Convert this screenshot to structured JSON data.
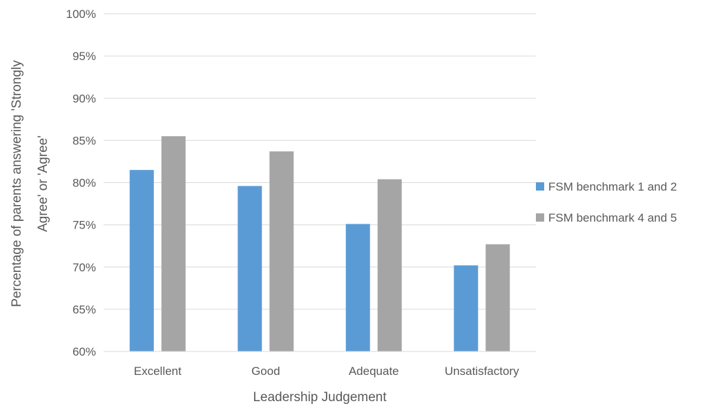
{
  "chart_data": {
    "type": "bar",
    "title": "",
    "xlabel": "Leadership Judgement",
    "ylabel_lines": [
      "Percentage of parents answering 'Strongly",
      "Agree' or 'Agree'"
    ],
    "categories": [
      "Excellent",
      "Good",
      "Adequate",
      "Unsatisfactory"
    ],
    "series": [
      {
        "name": "FSM benchmark 1 and 2",
        "color": "#5b9bd5",
        "values": [
          0.815,
          0.796,
          0.751,
          0.702
        ]
      },
      {
        "name": "FSM benchmark 4 and 5",
        "color": "#a5a5a5",
        "values": [
          0.855,
          0.837,
          0.804,
          0.727
        ]
      }
    ],
    "ylim": [
      0.6,
      1.0
    ],
    "yticks": [
      0.6,
      0.65,
      0.7,
      0.75,
      0.8,
      0.85,
      0.9,
      0.95,
      1.0
    ],
    "ytick_labels": [
      "60%",
      "65%",
      "70%",
      "75%",
      "80%",
      "85%",
      "90%",
      "95%",
      "100%"
    ],
    "grid": true,
    "legend_position": "right"
  }
}
